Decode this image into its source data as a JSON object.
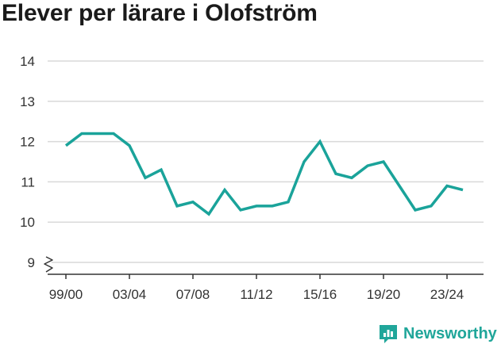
{
  "title": "Elever per lärare i Olofström",
  "brand": {
    "name": "Newsworthy",
    "icon": "newsworthy-logo-icon",
    "color": "#20a69a"
  },
  "chart_data": {
    "type": "line",
    "title": "Elever per lärare i Olofström",
    "xlabel": "",
    "ylabel": "",
    "x": [
      "99/00",
      "00/01",
      "01/02",
      "02/03",
      "03/04",
      "04/05",
      "05/06",
      "06/07",
      "07/08",
      "08/09",
      "09/10",
      "10/11",
      "11/12",
      "12/13",
      "13/14",
      "14/15",
      "15/16",
      "16/17",
      "17/18",
      "18/19",
      "19/20",
      "20/21",
      "21/22",
      "22/23",
      "23/24",
      "24/25"
    ],
    "x_tick_labels": [
      "99/00",
      "03/04",
      "07/08",
      "11/12",
      "15/16",
      "19/20",
      "23/24"
    ],
    "y_ticks": [
      9,
      10,
      11,
      12,
      13,
      14
    ],
    "ylim": [
      9,
      14
    ],
    "y_axis_break": true,
    "grid": true,
    "series": [
      {
        "color": "#1aa39a",
        "values": [
          11.9,
          12.2,
          12.2,
          12.2,
          11.9,
          11.1,
          11.3,
          10.4,
          10.5,
          10.2,
          10.8,
          10.3,
          10.4,
          10.4,
          10.5,
          11.5,
          12.0,
          11.2,
          11.1,
          11.4,
          11.5,
          10.9,
          10.3,
          10.4,
          10.9,
          10.8
        ]
      }
    ]
  }
}
